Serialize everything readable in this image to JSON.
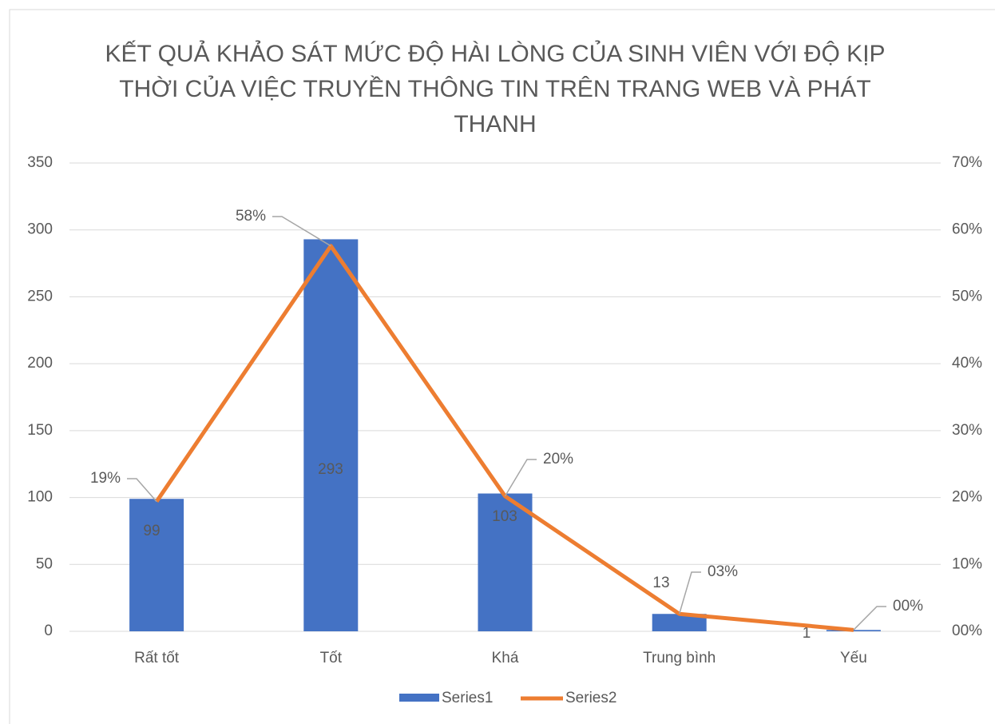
{
  "chart_data": {
    "type": "bar-line",
    "title": "KẾT QUẢ KHẢO SÁT MỨC ĐỘ HÀI LÒNG CỦA SINH VIÊN VỚI ĐỘ KỊP THỜI CỦA VIỆC TRUYỀN THÔNG TIN TRÊN TRANG WEB VÀ PHÁT THANH",
    "categories": [
      "Rất tốt",
      "Tốt",
      "Khá",
      "Trung bình",
      "Yếu"
    ],
    "series": [
      {
        "name": "Series1",
        "color": "#4472c4",
        "type": "bar",
        "values": [
          99,
          293,
          103,
          13,
          1
        ]
      },
      {
        "name": "Series2",
        "color": "#ed7d31",
        "type": "line",
        "axis": "y2",
        "values": [
          19.4,
          57.6,
          20.2,
          2.6,
          0.2
        ],
        "value_labels": [
          "19%",
          "58%",
          "20%",
          "03%",
          "00%"
        ]
      }
    ],
    "ylim": [
      0,
      350
    ],
    "yticks": [
      0,
      50,
      100,
      150,
      200,
      250,
      300,
      350
    ],
    "y2lim": [
      0,
      70
    ],
    "y2ticks": [
      {
        "value": 0,
        "label": "00%"
      },
      {
        "value": 10,
        "label": "10%"
      },
      {
        "value": 20,
        "label": "20%"
      },
      {
        "value": 30,
        "label": "30%"
      },
      {
        "value": 40,
        "label": "40%"
      },
      {
        "value": 50,
        "label": "50%"
      },
      {
        "value": 60,
        "label": "60%"
      },
      {
        "value": 70,
        "label": "70%"
      }
    ],
    "grid": true,
    "legend": "bottom"
  }
}
